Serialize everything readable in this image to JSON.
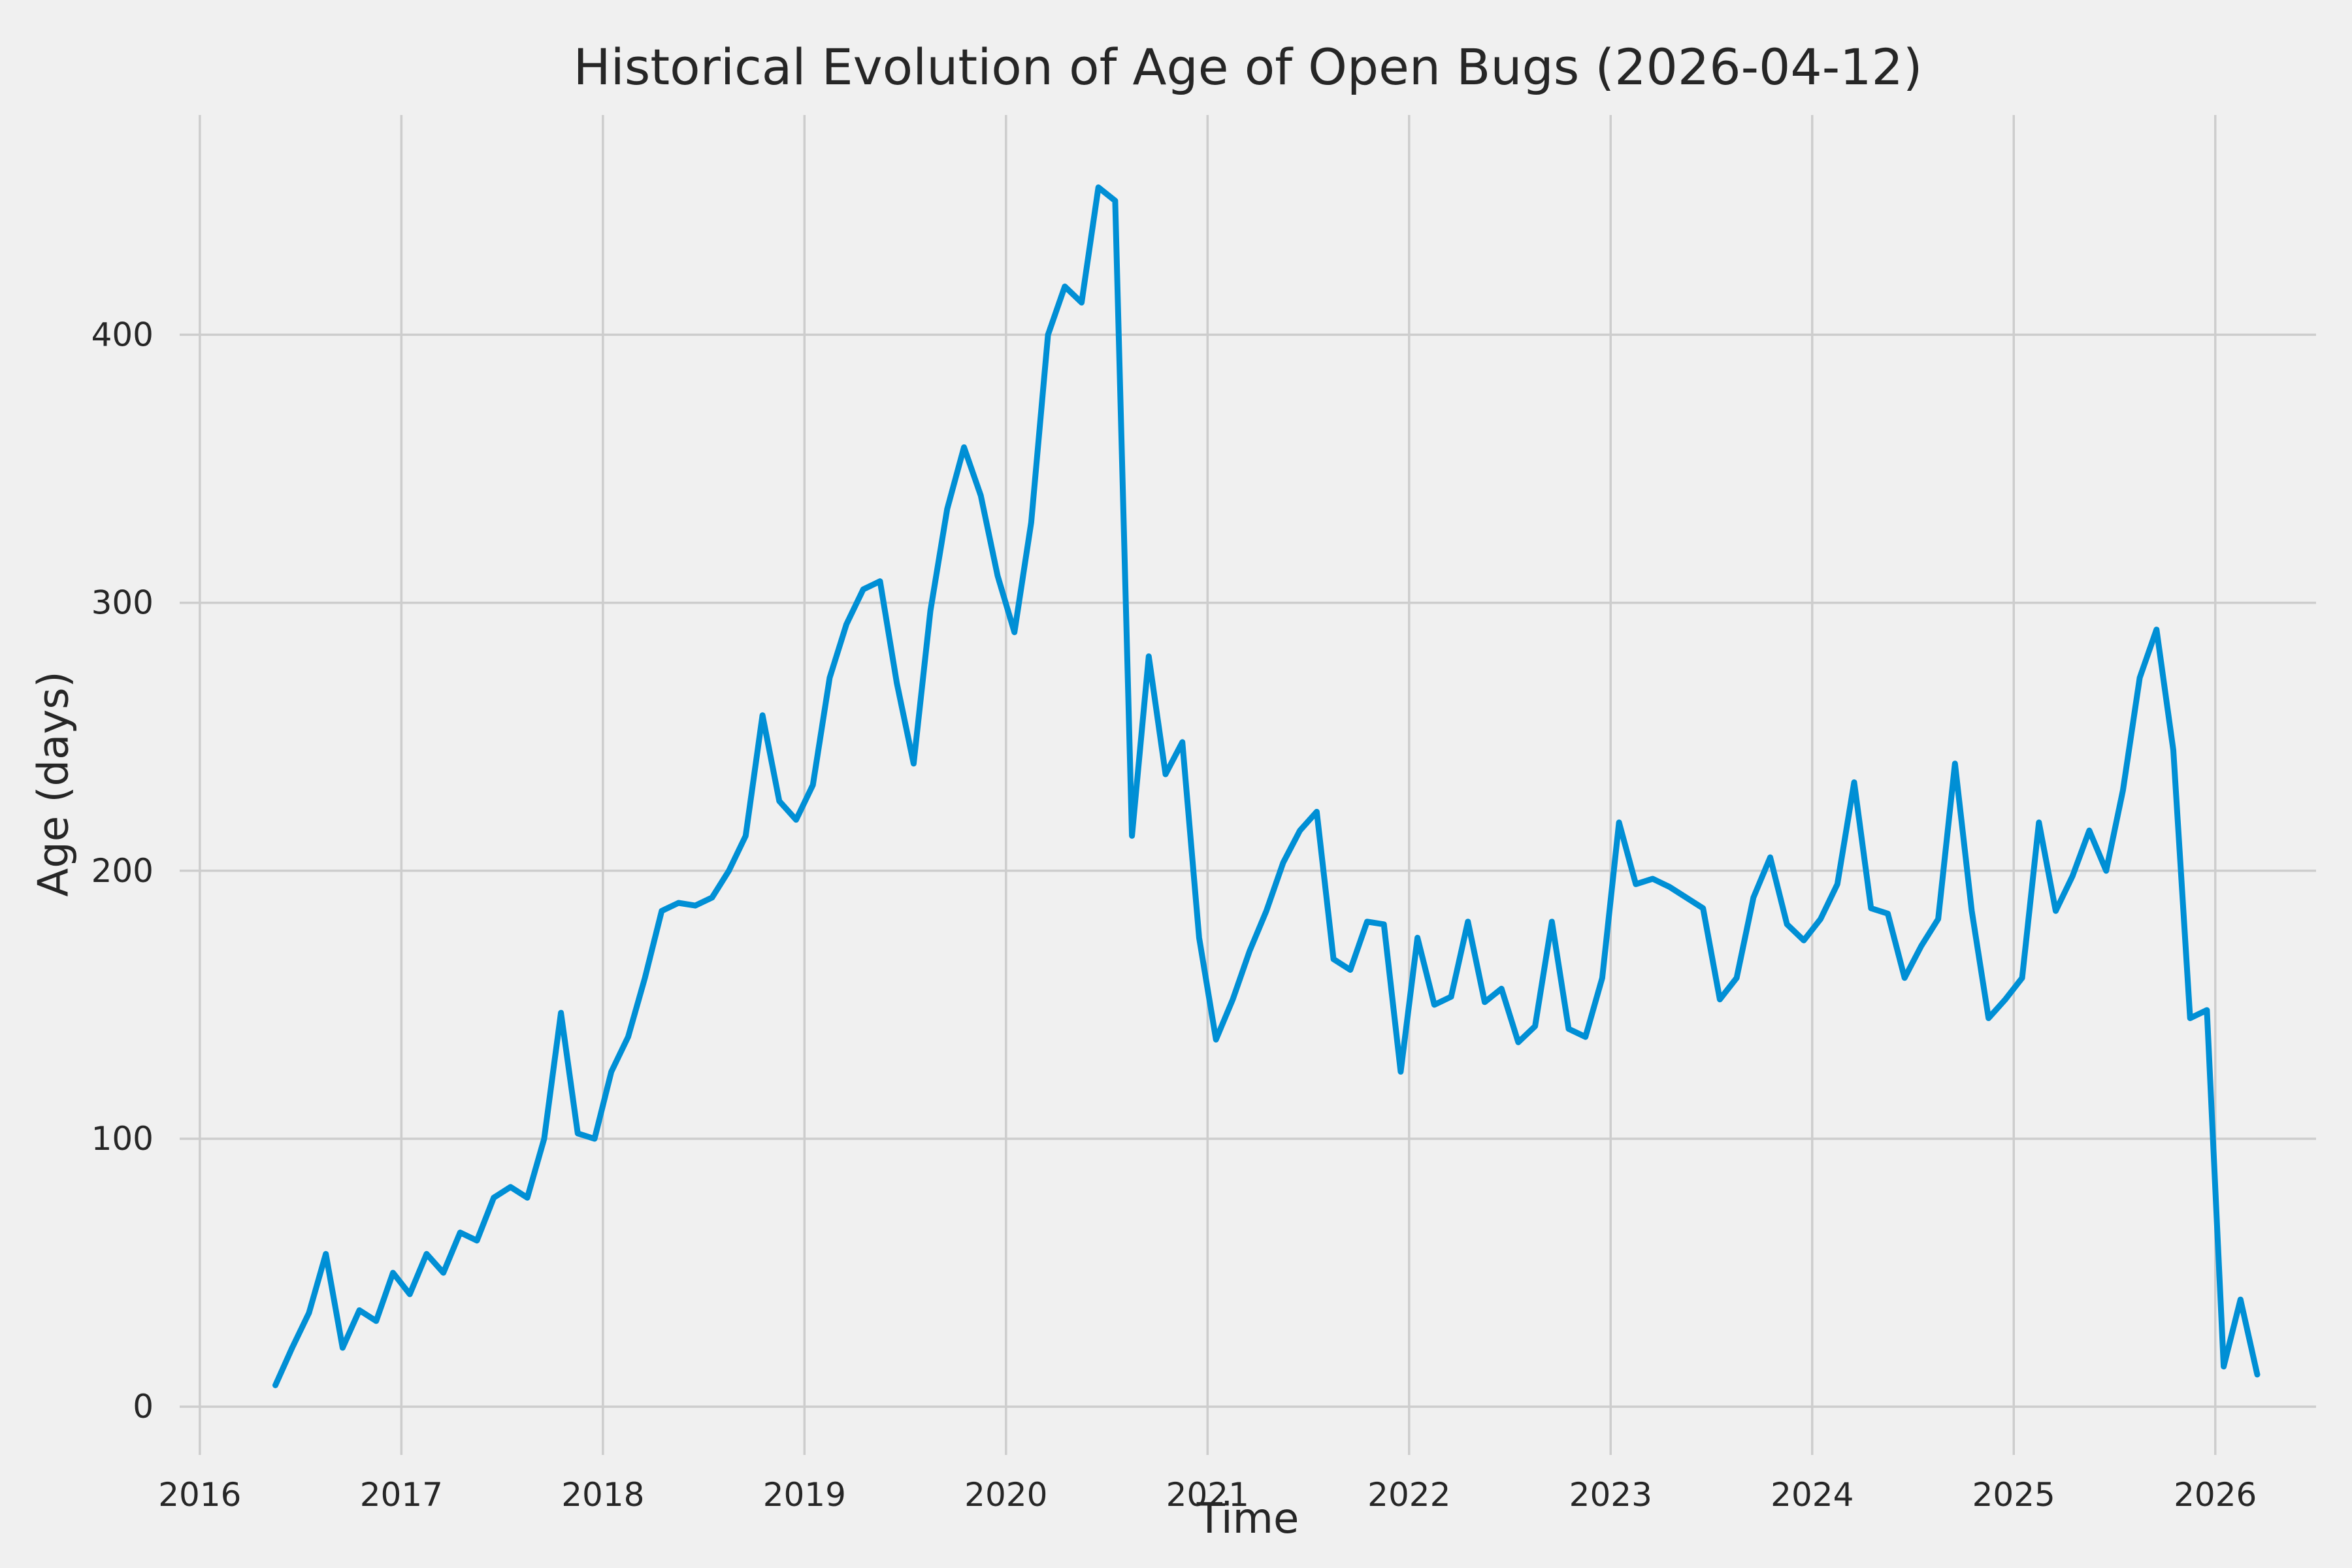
{
  "figure": {
    "background_color": "#f0f0f0"
  },
  "chart_data": {
    "type": "line",
    "title": "Historical Evolution of Age of Open Bugs (2026-04-12)",
    "xlabel": "Time",
    "ylabel": "Age (days)",
    "x_ticks": [
      2016,
      2017,
      2018,
      2019,
      2020,
      2021,
      2022,
      2023,
      2024,
      2025,
      2026
    ],
    "y_ticks": [
      0,
      100,
      200,
      300,
      400
    ],
    "xlim": [
      2015.9,
      2026.5
    ],
    "ylim": [
      -18,
      482
    ],
    "grid": true,
    "legend": false,
    "grid_color": "#cdcdcd",
    "line_color": "#008fd5",
    "text_color": "#262626",
    "series": [
      {
        "points": [
          [
            "2016-05",
            8
          ],
          [
            "2016-06",
            22
          ],
          [
            "2016-07",
            35
          ],
          [
            "2016-08",
            57
          ],
          [
            "2016-09",
            22
          ],
          [
            "2016-10",
            36
          ],
          [
            "2016-11",
            32
          ],
          [
            "2016-12",
            50
          ],
          [
            "2017-01",
            42
          ],
          [
            "2017-02",
            57
          ],
          [
            "2017-03",
            50
          ],
          [
            "2017-04",
            65
          ],
          [
            "2017-05",
            62
          ],
          [
            "2017-06",
            78
          ],
          [
            "2017-07",
            82
          ],
          [
            "2017-08",
            78
          ],
          [
            "2017-09",
            100
          ],
          [
            "2017-10",
            147
          ],
          [
            "2017-11",
            102
          ],
          [
            "2017-12",
            100
          ],
          [
            "2018-01",
            125
          ],
          [
            "2018-02",
            138
          ],
          [
            "2018-03",
            160
          ],
          [
            "2018-04",
            185
          ],
          [
            "2018-05",
            188
          ],
          [
            "2018-06",
            187
          ],
          [
            "2018-07",
            190
          ],
          [
            "2018-08",
            200
          ],
          [
            "2018-09",
            213
          ],
          [
            "2018-10",
            258
          ],
          [
            "2018-11",
            226
          ],
          [
            "2018-12",
            219
          ],
          [
            "2019-01",
            232
          ],
          [
            "2019-02",
            272
          ],
          [
            "2019-03",
            292
          ],
          [
            "2019-04",
            305
          ],
          [
            "2019-05",
            308
          ],
          [
            "2019-06",
            270
          ],
          [
            "2019-07",
            240
          ],
          [
            "2019-08",
            297
          ],
          [
            "2019-09",
            335
          ],
          [
            "2019-10",
            358
          ],
          [
            "2019-11",
            340
          ],
          [
            "2019-12",
            310
          ],
          [
            "2020-01",
            289
          ],
          [
            "2020-02",
            330
          ],
          [
            "2020-03",
            400
          ],
          [
            "2020-04",
            418
          ],
          [
            "2020-05",
            412
          ],
          [
            "2020-06",
            455
          ],
          [
            "2020-07",
            450
          ],
          [
            "2020-08",
            213
          ],
          [
            "2020-09",
            280
          ],
          [
            "2020-10",
            236
          ],
          [
            "2020-11",
            248
          ],
          [
            "2020-12",
            175
          ],
          [
            "2021-01",
            137
          ],
          [
            "2021-02",
            152
          ],
          [
            "2021-03",
            170
          ],
          [
            "2021-04",
            185
          ],
          [
            "2021-05",
            203
          ],
          [
            "2021-06",
            215
          ],
          [
            "2021-07",
            222
          ],
          [
            "2021-08",
            167
          ],
          [
            "2021-09",
            163
          ],
          [
            "2021-10",
            181
          ],
          [
            "2021-11",
            180
          ],
          [
            "2021-12",
            125
          ],
          [
            "2022-01",
            175
          ],
          [
            "2022-02",
            150
          ],
          [
            "2022-03",
            153
          ],
          [
            "2022-04",
            181
          ],
          [
            "2022-05",
            151
          ],
          [
            "2022-06",
            156
          ],
          [
            "2022-07",
            136
          ],
          [
            "2022-08",
            142
          ],
          [
            "2022-09",
            181
          ],
          [
            "2022-10",
            141
          ],
          [
            "2022-11",
            138
          ],
          [
            "2022-12",
            160
          ],
          [
            "2023-01",
            218
          ],
          [
            "2023-02",
            195
          ],
          [
            "2023-03",
            197
          ],
          [
            "2023-04",
            194
          ],
          [
            "2023-05",
            190
          ],
          [
            "2023-06",
            186
          ],
          [
            "2023-07",
            152
          ],
          [
            "2023-08",
            160
          ],
          [
            "2023-09",
            190
          ],
          [
            "2023-10",
            205
          ],
          [
            "2023-11",
            180
          ],
          [
            "2023-12",
            174
          ],
          [
            "2024-01",
            182
          ],
          [
            "2024-02",
            195
          ],
          [
            "2024-03",
            233
          ],
          [
            "2024-04",
            186
          ],
          [
            "2024-05",
            184
          ],
          [
            "2024-06",
            160
          ],
          [
            "2024-07",
            172
          ],
          [
            "2024-08",
            182
          ],
          [
            "2024-09",
            240
          ],
          [
            "2024-10",
            185
          ],
          [
            "2024-11",
            145
          ],
          [
            "2024-12",
            152
          ],
          [
            "2025-01",
            160
          ],
          [
            "2025-02",
            218
          ],
          [
            "2025-03",
            185
          ],
          [
            "2025-04",
            198
          ],
          [
            "2025-05",
            215
          ],
          [
            "2025-06",
            200
          ],
          [
            "2025-07",
            230
          ],
          [
            "2025-08",
            272
          ],
          [
            "2025-09",
            290
          ],
          [
            "2025-10",
            245
          ],
          [
            "2025-11",
            145
          ],
          [
            "2025-12",
            148
          ],
          [
            "2026-01",
            15
          ],
          [
            "2026-02",
            40
          ],
          [
            "2026-03",
            12
          ]
        ]
      }
    ]
  }
}
